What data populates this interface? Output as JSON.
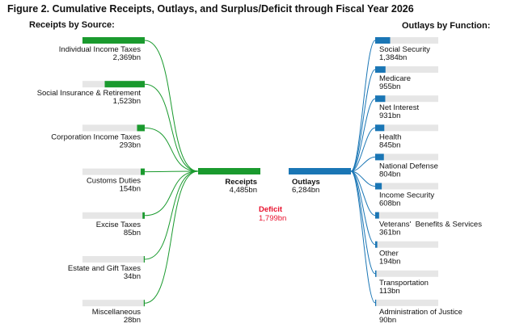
{
  "title": "Figure 2. Cumulative Receipts, Outlays, and Surplus/Deficit through Fiscal Year 2026",
  "chart_data": {
    "type": "sankey",
    "units": "bn",
    "colors": {
      "receipts": "#1a9a2e",
      "outlays": "#1a76b5",
      "track": "#e6e6e6",
      "deficit": "#e8112d"
    },
    "receipts_header": "Receipts by Source:",
    "outlays_header": "Outlays by Function:",
    "receipts_total": {
      "label": "Receipts",
      "value": 4485,
      "display": "4,485bn"
    },
    "outlays_total": {
      "label": "Outlays",
      "value": 6284,
      "display": "6,284bn"
    },
    "deficit": {
      "label": "Deficit",
      "value": 1799,
      "display": "1,799bn"
    },
    "sources": [
      {
        "label": "Individual Income Taxes",
        "value": 2369,
        "display": "2,369bn"
      },
      {
        "label": "Social Insurance & Retirement",
        "value": 1523,
        "display": "1,523bn"
      },
      {
        "label": "Corporation Income Taxes",
        "value": 293,
        "display": "293bn"
      },
      {
        "label": "Customs Duties",
        "value": 154,
        "display": "154bn"
      },
      {
        "label": "Excise Taxes",
        "value": 85,
        "display": "85bn"
      },
      {
        "label": "Estate and Gift Taxes",
        "value": 34,
        "display": "34bn"
      },
      {
        "label": "Miscellaneous",
        "value": 28,
        "display": "28bn"
      }
    ],
    "functions": [
      {
        "label": "Social Security",
        "value": 1384,
        "display": "1,384bn"
      },
      {
        "label": "Medicare",
        "value": 955,
        "display": "955bn"
      },
      {
        "label": "Net Interest",
        "value": 931,
        "display": "931bn"
      },
      {
        "label": "Health",
        "value": 845,
        "display": "845bn"
      },
      {
        "label": "National Defense",
        "value": 804,
        "display": "804bn"
      },
      {
        "label": "Income Security",
        "value": 608,
        "display": "608bn"
      },
      {
        "label": "Veterans'  Benefits & Services",
        "value": 361,
        "display": "361bn"
      },
      {
        "label": "Other",
        "value": 194,
        "display": "194bn"
      },
      {
        "label": "Transportation",
        "value": 113,
        "display": "113bn"
      },
      {
        "label": "Administration of Justice",
        "value": 90,
        "display": "90bn"
      }
    ]
  }
}
